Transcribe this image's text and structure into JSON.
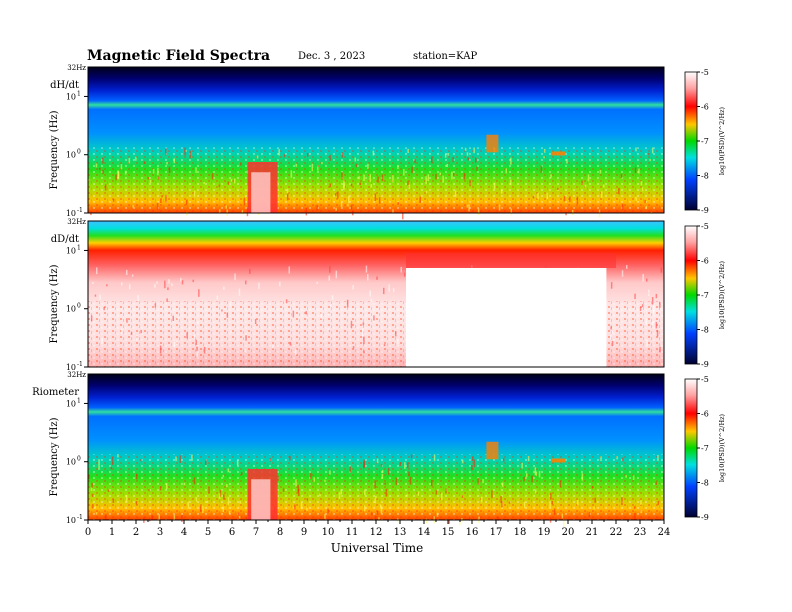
{
  "header": {
    "title": "Magnetic Field Spectra",
    "date": "Dec. 3  , 2023",
    "station": "station=KAP"
  },
  "chart_data": {
    "type": "heatmap",
    "xlabel": "Universal Time",
    "x_ticks": [
      "0",
      "1",
      "2",
      "3",
      "4",
      "5",
      "6",
      "7",
      "8",
      "9",
      "10",
      "11",
      "12",
      "13",
      "14",
      "15",
      "16",
      "17",
      "18",
      "19",
      "20",
      "21",
      "22",
      "23",
      "24"
    ],
    "xlim": [
      0,
      24
    ],
    "colorbar": {
      "ticks": [
        "-5",
        "-6",
        "-7",
        "-8",
        "-9"
      ],
      "label": "log10(PSD)(V^2/Hz)",
      "range": [
        -9,
        -5
      ]
    },
    "panels": [
      {
        "name": "dH/dt",
        "ylabel": "Frequency  (Hz)",
        "top_label": "32Hz",
        "y_ticks": [
          {
            "base": "10",
            "exp": "1"
          },
          {
            "base": "10",
            "exp": "0"
          },
          {
            "base": "10",
            "exp": "-1"
          }
        ],
        "ylim": [
          0.1,
          32
        ]
      },
      {
        "name": "dD/dt",
        "ylabel": "Frequency  (Hz)",
        "top_label": "32Hz",
        "y_ticks": [
          {
            "base": "10",
            "exp": "1"
          },
          {
            "base": "10",
            "exp": "0"
          },
          {
            "base": "10",
            "exp": "-1"
          }
        ],
        "ylim": [
          0.1,
          32
        ]
      },
      {
        "name": "Riometer",
        "ylabel": "Frequency  (Hz)",
        "top_label": "32Hz",
        "y_ticks": [
          {
            "base": "10",
            "exp": "1"
          },
          {
            "base": "10",
            "exp": "0"
          },
          {
            "base": "10",
            "exp": "-1"
          }
        ],
        "ylim": [
          0.1,
          32
        ]
      }
    ]
  },
  "colors": {
    "spectrum_low": "#000040",
    "spectrum_mid": "#00c800",
    "spectrum_high": "#ffffff"
  }
}
